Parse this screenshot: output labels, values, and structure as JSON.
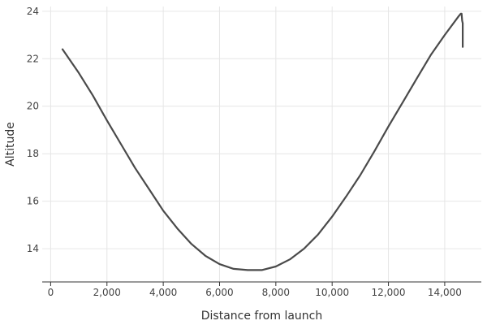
{
  "chart_data": {
    "type": "line",
    "xlabel": "Distance from launch",
    "ylabel": "Altitude",
    "xlim": [
      -300,
      15300
    ],
    "ylim": [
      12.6,
      24.2
    ],
    "x_ticks": [
      0,
      2000,
      4000,
      6000,
      8000,
      10000,
      12000,
      14000
    ],
    "x_tick_labels": [
      "0",
      "2,000",
      "4,000",
      "6,000",
      "8,000",
      "10,000",
      "12,000",
      "14,000"
    ],
    "y_ticks": [
      14,
      16,
      18,
      20,
      22,
      24
    ],
    "y_tick_labels": [
      "14",
      "16",
      "18",
      "20",
      "22",
      "24"
    ],
    "grid": true,
    "series": [
      {
        "color": "#4a4a4a",
        "x": [
          420,
          1000,
          1500,
          2000,
          2500,
          3000,
          3500,
          4000,
          4500,
          5000,
          5500,
          6000,
          6500,
          7000,
          7500,
          8000,
          8500,
          9000,
          9500,
          10000,
          10500,
          11000,
          11500,
          12000,
          12500,
          13000,
          13500,
          14000,
          14500,
          14570,
          14600,
          14620,
          14640,
          14640
        ],
        "y": [
          22.4,
          21.4,
          20.45,
          19.4,
          18.4,
          17.4,
          16.5,
          15.6,
          14.85,
          14.2,
          13.7,
          13.35,
          13.15,
          13.1,
          13.1,
          13.25,
          13.55,
          14.0,
          14.6,
          15.35,
          16.2,
          17.1,
          18.1,
          19.15,
          20.15,
          21.15,
          22.15,
          23.0,
          23.8,
          23.9,
          23.9,
          23.6,
          23.5,
          22.5
        ]
      }
    ]
  }
}
